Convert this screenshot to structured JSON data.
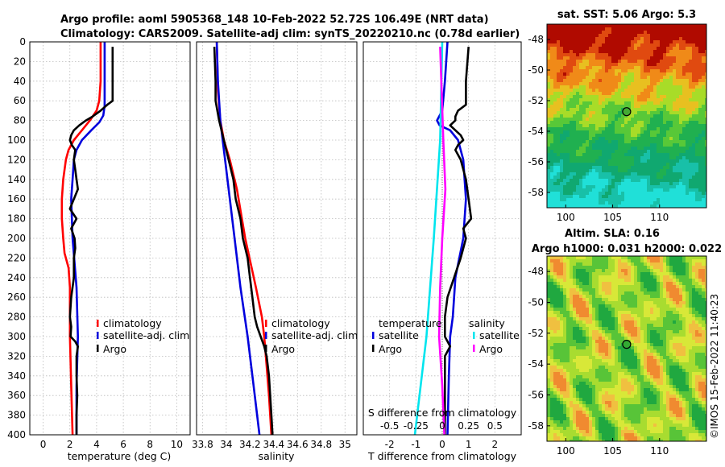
{
  "header": {
    "title1": "Argo profile: aoml 5905368_148 10-Feb-2022 52.72S 106.49E (NRT data)",
    "title2": "Climatology: CARS2009. Satellite-adj clim: synTS_20220210.nc (0.78d earlier)"
  },
  "depth_ticks": [
    0,
    20,
    40,
    60,
    80,
    100,
    120,
    140,
    160,
    180,
    200,
    220,
    240,
    260,
    280,
    300,
    320,
    340,
    360,
    380,
    400
  ],
  "colors": {
    "clim": "#ff0000",
    "sat": "#0000dd",
    "argo": "#000000",
    "cyan": "#00e5ee",
    "magenta": "#ff00ff"
  },
  "chart_data": [
    {
      "id": "temperature",
      "type": "line",
      "xlabel": "temperature (deg C)",
      "ylabel": "depth",
      "xlim": [
        -1,
        11
      ],
      "ylim": [
        400,
        0
      ],
      "xticks": [
        0,
        2,
        4,
        6,
        8,
        10
      ],
      "legend": [
        "climatology",
        "satellite-adj. clim",
        "Argo"
      ],
      "series": [
        {
          "name": "climatology",
          "depth": [
            0,
            20,
            40,
            60,
            70,
            80,
            90,
            100,
            110,
            120,
            140,
            160,
            180,
            200,
            215,
            230,
            250,
            280,
            300,
            350,
            400
          ],
          "values": [
            4.3,
            4.3,
            4.3,
            4.2,
            4.0,
            3.5,
            2.9,
            2.3,
            1.9,
            1.7,
            1.5,
            1.4,
            1.4,
            1.5,
            1.6,
            1.9,
            2.0,
            2.0,
            2.0,
            2.1,
            2.2
          ]
        },
        {
          "name": "satellite-adj. clim",
          "depth": [
            0,
            40,
            65,
            75,
            82,
            90,
            100,
            110,
            120,
            140,
            160,
            200,
            250,
            300,
            350,
            400
          ],
          "values": [
            4.6,
            4.6,
            4.6,
            4.5,
            4.2,
            3.6,
            2.9,
            2.5,
            2.3,
            2.2,
            2.1,
            2.2,
            2.5,
            2.6,
            2.5,
            2.5
          ]
        },
        {
          "name": "Argo",
          "depth": [
            5,
            20,
            40,
            60,
            64,
            70,
            76,
            80,
            85,
            90,
            95,
            100,
            105,
            110,
            120,
            130,
            140,
            150,
            160,
            170,
            180,
            190,
            200,
            210,
            220,
            240,
            260,
            280,
            290,
            300,
            305,
            310,
            320,
            340,
            360,
            380,
            400
          ],
          "values": [
            5.2,
            5.2,
            5.2,
            5.2,
            4.8,
            4.3,
            3.7,
            3.2,
            2.7,
            2.3,
            2.1,
            2.0,
            2.15,
            2.4,
            2.3,
            2.4,
            2.5,
            2.6,
            2.3,
            2.0,
            2.5,
            2.1,
            2.35,
            2.4,
            2.3,
            2.3,
            2.1,
            2.0,
            2.1,
            2.05,
            2.4,
            2.6,
            2.5,
            2.5,
            2.55,
            2.5,
            2.5
          ]
        }
      ]
    },
    {
      "id": "salinity",
      "type": "line",
      "xlabel": "salinity",
      "ylabel": "depth",
      "xlim": [
        33.75,
        35.1
      ],
      "ylim": [
        400,
        0
      ],
      "xticks": [
        33.8,
        34,
        34.2,
        34.4,
        34.6,
        34.8,
        35
      ],
      "xticklabels": [
        "33.8",
        "34",
        "34.2",
        "34.4",
        "34.6",
        "34.8",
        "35"
      ],
      "legend": [
        "climatology",
        "satellite-adj. clim",
        "Argo"
      ],
      "series": [
        {
          "name": "climatology",
          "depth": [
            0,
            50,
            80,
            100,
            120,
            150,
            200,
            250,
            280,
            300,
            330,
            360,
            400
          ],
          "values": [
            33.92,
            33.93,
            33.95,
            33.98,
            34.03,
            34.09,
            34.16,
            34.25,
            34.3,
            34.32,
            34.34,
            34.36,
            34.38
          ]
        },
        {
          "name": "satellite-adj. clim",
          "depth": [
            0,
            40,
            80,
            100,
            130,
            160,
            200,
            250,
            300,
            350,
            400
          ],
          "values": [
            33.92,
            33.93,
            33.95,
            33.97,
            34.0,
            34.03,
            34.07,
            34.12,
            34.18,
            34.23,
            34.28
          ]
        },
        {
          "name": "Argo",
          "depth": [
            5,
            40,
            60,
            80,
            100,
            120,
            140,
            160,
            180,
            200,
            220,
            240,
            260,
            280,
            290,
            300,
            310,
            320,
            340,
            360,
            380,
            400
          ],
          "values": [
            33.9,
            33.91,
            33.91,
            33.94,
            33.98,
            34.02,
            34.06,
            34.08,
            34.12,
            34.14,
            34.18,
            34.2,
            34.22,
            34.24,
            34.26,
            34.29,
            34.32,
            34.34,
            34.36,
            34.37,
            34.38,
            34.39
          ]
        }
      ]
    },
    {
      "id": "difference",
      "type": "line",
      "xlabel": "T difference from climatology",
      "top_xlabel": "S difference from climatology",
      "xlim": [
        -3,
        3
      ],
      "ylim": [
        400,
        0
      ],
      "xticks": [
        -2,
        -1,
        0,
        1,
        2
      ],
      "xticklabels": [
        "-2",
        "-1",
        "0",
        "1",
        "2"
      ],
      "top_xticklabels": [
        "-0.5",
        "-0.25",
        "0",
        "0.25",
        "0.5"
      ],
      "legend_headers": [
        "temperature",
        "salinity"
      ],
      "legend_left": [
        "satellite",
        "Argo"
      ],
      "legend_right": [
        "satellite",
        "Argo"
      ],
      "series": [
        {
          "name": "T satellite",
          "depth": [
            0,
            40,
            70,
            80,
            85,
            90,
            100,
            120,
            160,
            200,
            240,
            280,
            300,
            340,
            400
          ],
          "values": [
            0.2,
            0.1,
            0.0,
            -0.2,
            -0.1,
            0.3,
            0.6,
            0.8,
            0.9,
            0.8,
            0.5,
            0.4,
            0.3,
            0.25,
            0.2
          ]
        },
        {
          "name": "T Argo",
          "depth": [
            5,
            40,
            64,
            70,
            76,
            80,
            85,
            90,
            95,
            100,
            105,
            110,
            120,
            140,
            160,
            180,
            190,
            200,
            220,
            260,
            280,
            300,
            310,
            320,
            360,
            400
          ],
          "values": [
            1.0,
            0.9,
            0.9,
            0.6,
            0.5,
            0.5,
            0.3,
            0.5,
            0.7,
            0.8,
            0.6,
            0.5,
            0.7,
            0.9,
            1.0,
            1.1,
            0.8,
            0.9,
            0.7,
            0.2,
            0.1,
            0.1,
            0.3,
            0.1,
            0.1,
            0.1
          ]
        },
        {
          "name": "S satellite",
          "depth": [
            0,
            100,
            200,
            300,
            400
          ],
          "values": [
            0.0,
            -0.02,
            -0.08,
            -0.15,
            -0.26
          ]
        },
        {
          "name": "S Argo",
          "depth": [
            5,
            100,
            150,
            200,
            250,
            300,
            350,
            400
          ],
          "values": [
            -0.02,
            0.01,
            0.03,
            0.0,
            -0.02,
            -0.03,
            0.0,
            0.02
          ]
        }
      ]
    },
    {
      "id": "sst_map",
      "type": "heatmap",
      "title": "sat. SST: 5.06 Argo: 5.3",
      "xticks": [
        100,
        105,
        110
      ],
      "yticks": [
        -48,
        -50,
        -52,
        -54,
        -56,
        -58
      ],
      "xlim": [
        98,
        115
      ],
      "ylim": [
        -59,
        -47
      ],
      "argo_position": [
        106.49,
        -52.72
      ]
    },
    {
      "id": "sla_map",
      "type": "heatmap",
      "title1": "Altim. SLA: 0.16",
      "title2": "Argo h1000: 0.031 h2000: 0.022",
      "xticks": [
        100,
        105,
        110
      ],
      "yticks": [
        -48,
        -50,
        -52,
        -54,
        -56,
        -58
      ],
      "xlim": [
        98,
        115
      ],
      "ylim": [
        -59,
        -47
      ],
      "argo_position": [
        106.49,
        -52.72
      ]
    }
  ],
  "footer": {
    "credit": "©IMOS 15-Feb-2022 11:40:23"
  }
}
